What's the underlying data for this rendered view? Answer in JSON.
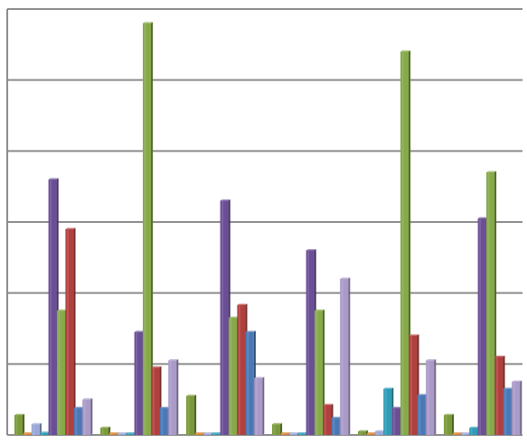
{
  "chart_data": {
    "type": "bar",
    "title": "",
    "xlabel": "",
    "ylabel": "",
    "ylim": [
      0,
      6
    ],
    "grid": true,
    "legend": "none",
    "categories": [
      "",
      "",
      "",
      "",
      "",
      ""
    ],
    "series": [
      {
        "color": "#7a9a3a",
        "values": [
          0.28,
          0.1,
          0.55,
          0.15,
          0.05,
          0.28
        ]
      },
      {
        "color": "#d9822b",
        "values": [
          0.02,
          0.02,
          0.02,
          0.02,
          0.02,
          0.02
        ]
      },
      {
        "color": "#9aa8d8",
        "values": [
          0.15,
          0.02,
          0.02,
          0.02,
          0.05,
          0.02
        ]
      },
      {
        "color": "#2f9bb5",
        "values": [
          0.03,
          0.02,
          0.02,
          0.02,
          0.65,
          0.1
        ]
      },
      {
        "color": "#6b4f96",
        "values": [
          3.6,
          1.45,
          3.3,
          2.6,
          0.38,
          3.05
        ]
      },
      {
        "color": "#86a94a",
        "values": [
          1.75,
          5.8,
          1.65,
          1.75,
          5.4,
          3.7
        ]
      },
      {
        "color": "#b0403e",
        "values": [
          2.9,
          0.95,
          1.83,
          0.42,
          1.4,
          1.1
        ]
      },
      {
        "color": "#4a78b5",
        "values": [
          0.38,
          0.38,
          1.45,
          0.24,
          0.56,
          0.65
        ]
      },
      {
        "color": "#a99ac8",
        "values": [
          0.5,
          1.05,
          0.8,
          2.2,
          1.05,
          0.75
        ]
      }
    ]
  }
}
